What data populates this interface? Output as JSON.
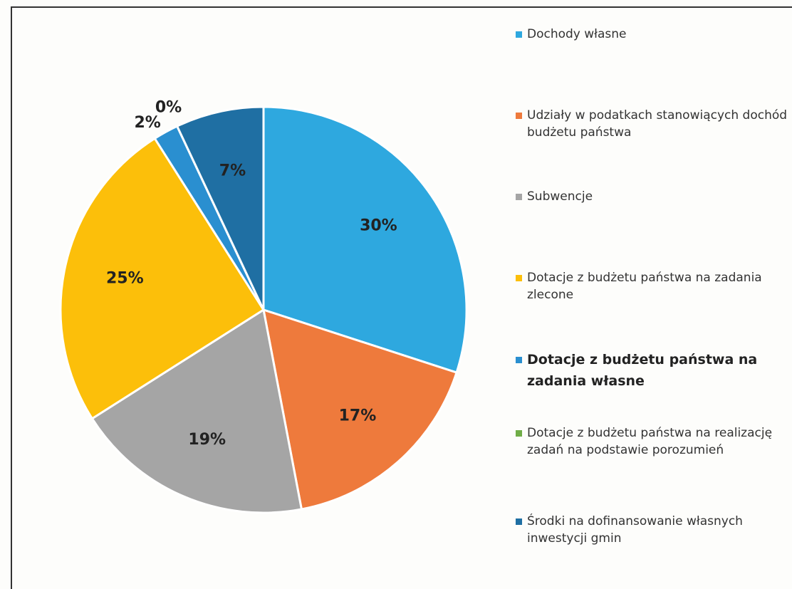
{
  "chart_data": {
    "type": "pie",
    "categories": [
      "Dochody własne",
      "Udziały w podatkach stanowiących dochód budżetu państwa",
      "Subwencje",
      "Dotacje z budżetu państwa na zadania zlecone",
      "Dotacje z budżetu państwa na zadania własne",
      "Dotacje z budżetu państwa na realizację zadań na podstawie porozumień",
      "Środki na dofinansowanie własnych inwestycji gmin"
    ],
    "values": [
      30,
      17,
      19,
      25,
      2,
      0,
      7
    ],
    "value_labels": [
      "30%",
      "17%",
      "19%",
      "25%",
      "2%",
      "0%",
      "7%"
    ],
    "colors": [
      "#2ea8df",
      "#ee7a3c",
      "#a5a5a5",
      "#fcbf0a",
      "#2a8fd0",
      "#70ad47",
      "#1f6fa3"
    ],
    "legend": "right"
  }
}
